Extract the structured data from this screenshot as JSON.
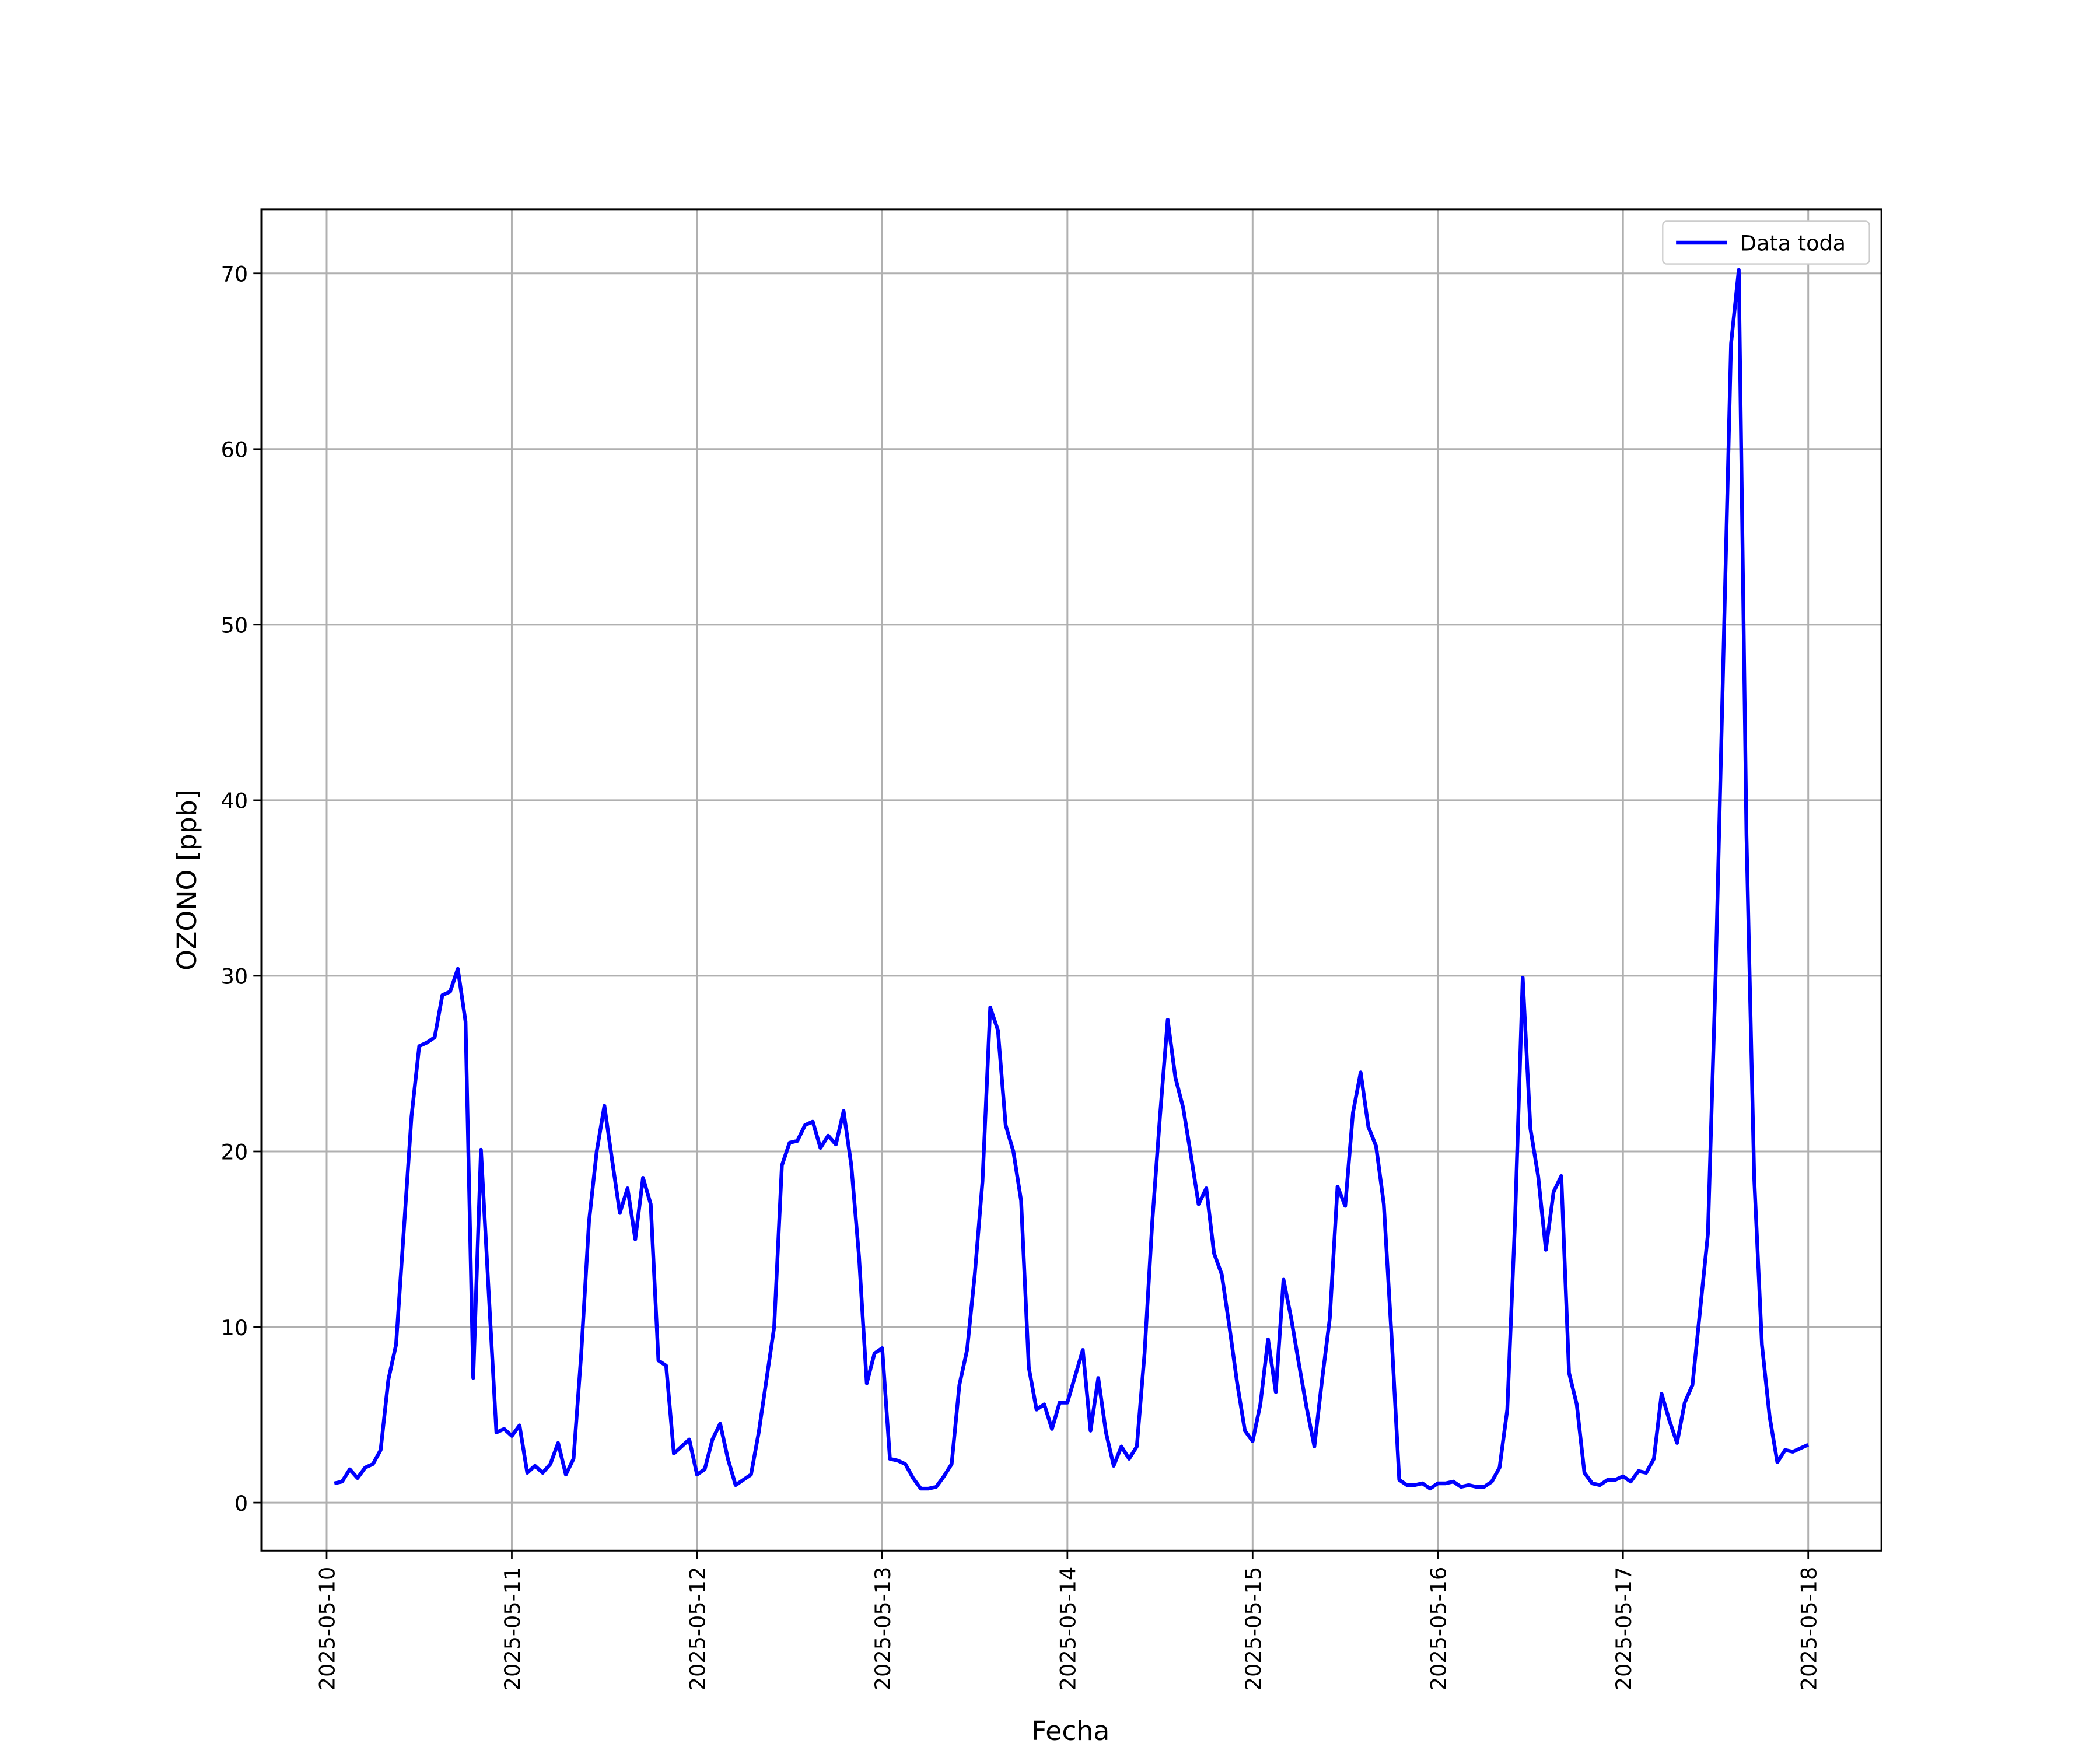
{
  "chart_data": {
    "type": "line",
    "xlabel": "Fecha",
    "ylabel": "OZONO [ppb]",
    "x": [
      "2025-05-10 01:00",
      "2025-05-10 02:00",
      "2025-05-10 03:00",
      "2025-05-10 04:00",
      "2025-05-10 05:00",
      "2025-05-10 06:00",
      "2025-05-10 07:00",
      "2025-05-10 08:00",
      "2025-05-10 09:00",
      "2025-05-10 10:00",
      "2025-05-10 11:00",
      "2025-05-10 12:00",
      "2025-05-10 13:00",
      "2025-05-10 14:00",
      "2025-05-10 15:00",
      "2025-05-10 16:00",
      "2025-05-10 17:00",
      "2025-05-10 18:00",
      "2025-05-10 19:00",
      "2025-05-10 20:00",
      "2025-05-10 21:00",
      "2025-05-10 22:00",
      "2025-05-10 23:00",
      "2025-05-11 00:00",
      "2025-05-11 01:00",
      "2025-05-11 02:00",
      "2025-05-11 03:00",
      "2025-05-11 04:00",
      "2025-05-11 05:00",
      "2025-05-11 06:00",
      "2025-05-11 07:00",
      "2025-05-11 08:00",
      "2025-05-11 09:00",
      "2025-05-11 10:00",
      "2025-05-11 11:00",
      "2025-05-11 12:00",
      "2025-05-11 13:00",
      "2025-05-11 14:00",
      "2025-05-11 15:00",
      "2025-05-11 16:00",
      "2025-05-11 17:00",
      "2025-05-11 18:00",
      "2025-05-11 19:00",
      "2025-05-11 20:00",
      "2025-05-11 21:00",
      "2025-05-11 22:00",
      "2025-05-11 23:00",
      "2025-05-12 00:00",
      "2025-05-12 01:00",
      "2025-05-12 02:00",
      "2025-05-12 03:00",
      "2025-05-12 04:00",
      "2025-05-12 05:00",
      "2025-05-12 06:00",
      "2025-05-12 07:00",
      "2025-05-12 08:00",
      "2025-05-12 09:00",
      "2025-05-12 10:00",
      "2025-05-12 11:00",
      "2025-05-12 12:00",
      "2025-05-12 13:00",
      "2025-05-12 14:00",
      "2025-05-12 15:00",
      "2025-05-12 16:00",
      "2025-05-12 17:00",
      "2025-05-12 18:00",
      "2025-05-12 19:00",
      "2025-05-12 20:00",
      "2025-05-12 21:00",
      "2025-05-12 22:00",
      "2025-05-12 23:00",
      "2025-05-13 00:00",
      "2025-05-13 01:00",
      "2025-05-13 02:00",
      "2025-05-13 03:00",
      "2025-05-13 04:00",
      "2025-05-13 05:00",
      "2025-05-13 06:00",
      "2025-05-13 07:00",
      "2025-05-13 08:00",
      "2025-05-13 09:00",
      "2025-05-13 10:00",
      "2025-05-13 11:00",
      "2025-05-13 12:00",
      "2025-05-13 13:00",
      "2025-05-13 14:00",
      "2025-05-13 15:00",
      "2025-05-13 16:00",
      "2025-05-13 17:00",
      "2025-05-13 18:00",
      "2025-05-13 19:00",
      "2025-05-13 20:00",
      "2025-05-13 21:00",
      "2025-05-13 22:00",
      "2025-05-13 23:00",
      "2025-05-14 00:00",
      "2025-05-14 01:00",
      "2025-05-14 02:00",
      "2025-05-14 03:00",
      "2025-05-14 04:00",
      "2025-05-14 05:00",
      "2025-05-14 06:00",
      "2025-05-14 07:00",
      "2025-05-14 08:00",
      "2025-05-14 09:00",
      "2025-05-14 10:00",
      "2025-05-14 11:00",
      "2025-05-14 12:00",
      "2025-05-14 13:00",
      "2025-05-14 14:00",
      "2025-05-14 15:00",
      "2025-05-14 16:00",
      "2025-05-14 17:00",
      "2025-05-14 18:00",
      "2025-05-14 19:00",
      "2025-05-14 20:00",
      "2025-05-14 21:00",
      "2025-05-14 22:00",
      "2025-05-14 23:00",
      "2025-05-15 00:00",
      "2025-05-15 01:00",
      "2025-05-15 02:00",
      "2025-05-15 03:00",
      "2025-05-15 04:00",
      "2025-05-15 05:00",
      "2025-05-15 06:00",
      "2025-05-15 07:00",
      "2025-05-15 08:00",
      "2025-05-15 09:00",
      "2025-05-15 10:00",
      "2025-05-15 11:00",
      "2025-05-15 12:00",
      "2025-05-15 13:00",
      "2025-05-15 14:00",
      "2025-05-15 15:00",
      "2025-05-15 16:00",
      "2025-05-15 17:00",
      "2025-05-15 18:00",
      "2025-05-15 19:00",
      "2025-05-15 20:00",
      "2025-05-15 21:00",
      "2025-05-15 22:00",
      "2025-05-15 23:00",
      "2025-05-16 00:00",
      "2025-05-16 01:00",
      "2025-05-16 02:00",
      "2025-05-16 03:00",
      "2025-05-16 04:00",
      "2025-05-16 05:00",
      "2025-05-16 06:00",
      "2025-05-16 07:00",
      "2025-05-16 08:00",
      "2025-05-16 09:00",
      "2025-05-16 10:00",
      "2025-05-16 11:00",
      "2025-05-16 12:00",
      "2025-05-16 13:00",
      "2025-05-16 14:00",
      "2025-05-16 15:00",
      "2025-05-16 16:00",
      "2025-05-16 17:00",
      "2025-05-16 18:00",
      "2025-05-16 19:00",
      "2025-05-16 20:00",
      "2025-05-16 21:00",
      "2025-05-16 22:00",
      "2025-05-16 23:00",
      "2025-05-17 00:00",
      "2025-05-17 01:00",
      "2025-05-17 02:00",
      "2025-05-17 03:00",
      "2025-05-17 04:00",
      "2025-05-17 05:00",
      "2025-05-17 06:00",
      "2025-05-17 07:00",
      "2025-05-17 08:00",
      "2025-05-17 09:00",
      "2025-05-17 10:00",
      "2025-05-17 11:00",
      "2025-05-17 12:00",
      "2025-05-17 13:00",
      "2025-05-17 14:00",
      "2025-05-17 15:00",
      "2025-05-17 16:00",
      "2025-05-17 17:00",
      "2025-05-17 18:00",
      "2025-05-17 19:00",
      "2025-05-17 20:00",
      "2025-05-17 21:00",
      "2025-05-17 22:00",
      "2025-05-17 23:00",
      "2025-05-18 00:00"
    ],
    "series": [
      {
        "name": "Data toda",
        "color": "#0000ff",
        "values": [
          1.1,
          1.2,
          1.9,
          1.4,
          2.0,
          2.2,
          3.0,
          7.0,
          9.0,
          15.5,
          22,
          26,
          26.2,
          26.5,
          28.9,
          29.1,
          30.4,
          27.4,
          7.1,
          20.1,
          12,
          4.0,
          4.2,
          3.8,
          4.4,
          1.7,
          2.1,
          1.7,
          2.2,
          3.4,
          1.6,
          2.5,
          8.5,
          16,
          20,
          22.6,
          19.5,
          16.5,
          17.9,
          15.0,
          18.5,
          17.0,
          8.1,
          7.8,
          2.8,
          3.2,
          3.6,
          1.6,
          1.9,
          3.6,
          4.5,
          2.5,
          1.0,
          1.3,
          1.6,
          4.0,
          7.0,
          10,
          19.2,
          20.5,
          20.6,
          21.5,
          21.7,
          20.2,
          20.9,
          20.4,
          22.3,
          19.2,
          14,
          6.8,
          8.5,
          8.8,
          2.5,
          2.4,
          2.2,
          1.4,
          0.8,
          0.8,
          0.9,
          1.5,
          2.2,
          6.7,
          8.7,
          13,
          18.3,
          28.2,
          26.9,
          21.5,
          20,
          17.2,
          7.7,
          5.3,
          5.6,
          4.2,
          5.7,
          5.7,
          7.2,
          8.7,
          4.1,
          7.1,
          4.0,
          2.1,
          3.2,
          2.5,
          3.2,
          8.5,
          16,
          22,
          27.5,
          24.2,
          22.5,
          19.8,
          17.0,
          17.9,
          14.2,
          13.0,
          10,
          6.8,
          4.1,
          3.5,
          5.6,
          9.3,
          6.3,
          12.7,
          10.5,
          7.9,
          5.4,
          3.2,
          7.0,
          10.5,
          18.0,
          16.9,
          22.2,
          24.5,
          21.4,
          20.3,
          17.0,
          9.5,
          1.3,
          1.0,
          1.0,
          1.1,
          0.8,
          1.1,
          1.1,
          1.2,
          0.9,
          1.0,
          0.9,
          0.9,
          1.2,
          2.0,
          5.3,
          16,
          29.9,
          21.3,
          18.6,
          14.4,
          17.7,
          18.6,
          7.4,
          5.6,
          1.7,
          1.1,
          1.0,
          1.3,
          1.3,
          1.5,
          1.2,
          1.8,
          1.7,
          2.5,
          6.2,
          4.7,
          3.4,
          5.7,
          6.7,
          11,
          15.3,
          30,
          48,
          66,
          70.2,
          38,
          18.5,
          9.0,
          4.9,
          2.3,
          3.0,
          2.9,
          3.1,
          3.3
        ]
      }
    ],
    "xlim": [
      "2025-05-09 15:32",
      "2025-05-18 09:29"
    ],
    "xticks": [
      "2025-05-10",
      "2025-05-11",
      "2025-05-12",
      "2025-05-13",
      "2025-05-14",
      "2025-05-15",
      "2025-05-16",
      "2025-05-17",
      "2025-05-18"
    ],
    "ylim": [
      -2.73,
      73.65
    ],
    "yticks": [
      0,
      10,
      20,
      30,
      40,
      50,
      60,
      70
    ],
    "grid": true,
    "legend": "upper right"
  }
}
